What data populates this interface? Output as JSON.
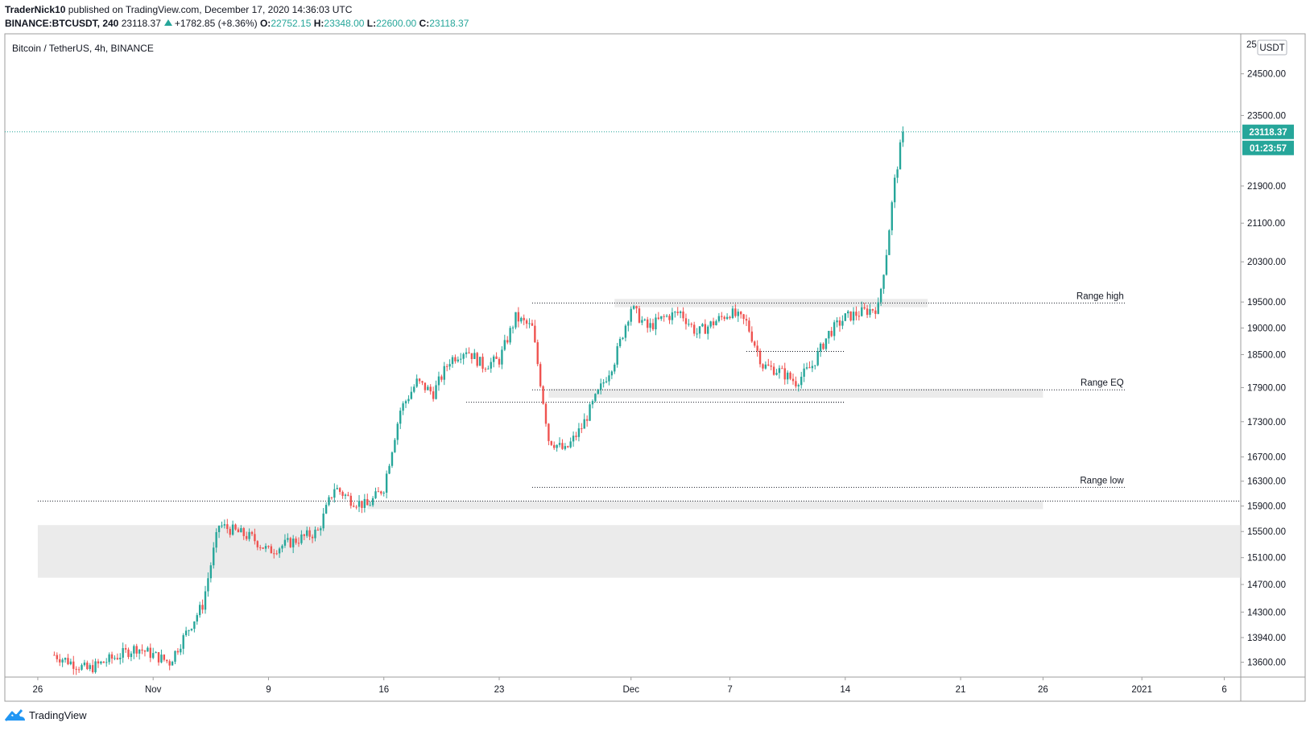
{
  "header": {
    "author": "TraderNick10",
    "published_text": " published on TradingView.com, December 17, 2020 14:36:03 UTC",
    "symbol": "BINANCE:BTCUSDT, 240",
    "last": "23118.37",
    "change": "+1782.85 (+8.36%)",
    "o_label": "O:",
    "o": "22752.15",
    "h_label": "H:",
    "h": "23348.00",
    "l_label": "L:",
    "l": "22600.00",
    "c_label": "C:",
    "c": "23118.37"
  },
  "footer": {
    "brand": "TradingView"
  },
  "colors": {
    "up": "#26a69a",
    "down": "#ef5350",
    "zone": "#e0e0e0"
  },
  "chart_data": {
    "type": "candlestick",
    "title": "Bitcoin / TetherUS, 4h, BINANCE",
    "currency": "USDT",
    "y_scale": "log",
    "y_range": [
      13400,
      25500
    ],
    "x_range": [
      "2020-10-24",
      "2021-01-07"
    ],
    "y_ticks": [
      13600,
      13940,
      14300,
      14700,
      15100,
      15500,
      15900,
      16300,
      16700,
      17300,
      17900,
      18500,
      19000,
      19500,
      20300,
      21100,
      21900,
      23500,
      24500
    ],
    "y_ticks_labels": [
      "13600.00",
      "13940.00",
      "14300.00",
      "14700.00",
      "15100.00",
      "15500.00",
      "15900.00",
      "16300.00",
      "16700.00",
      "17300.00",
      "17900.00",
      "18500.00",
      "19000.00",
      "19500.00",
      "20300.00",
      "21100.00",
      "21900.00",
      "23500.00",
      "24500.00"
    ],
    "y_top_partial_label": "25",
    "x_ticks": [
      {
        "date": "2020-10-26",
        "label": "26"
      },
      {
        "date": "2020-11-02",
        "label": "Nov"
      },
      {
        "date": "2020-11-09",
        "label": "9"
      },
      {
        "date": "2020-11-16",
        "label": "16"
      },
      {
        "date": "2020-11-23",
        "label": "23"
      },
      {
        "date": "2020-12-01",
        "label": "Dec"
      },
      {
        "date": "2020-12-07",
        "label": "7"
      },
      {
        "date": "2020-12-14",
        "label": "14"
      },
      {
        "date": "2020-12-21",
        "label": "21"
      },
      {
        "date": "2020-12-26",
        "label": "26"
      },
      {
        "date": "2021-01-01",
        "label": "2021"
      },
      {
        "date": "2021-01-06",
        "label": "6"
      }
    ],
    "last_price": 23118.37,
    "last_price_label": "23118.37",
    "countdown": "01:23:57",
    "key_points": [
      {
        "date": "2020-10-27",
        "price": 13700
      },
      {
        "date": "2020-10-29",
        "price": 13500
      },
      {
        "date": "2020-11-01",
        "price": 13800
      },
      {
        "date": "2020-11-03",
        "price": 13600
      },
      {
        "date": "2020-11-05",
        "price": 14400
      },
      {
        "date": "2020-11-06",
        "price": 15600
      },
      {
        "date": "2020-11-08",
        "price": 15400
      },
      {
        "date": "2020-11-09",
        "price": 15200
      },
      {
        "date": "2020-11-10",
        "price": 15300
      },
      {
        "date": "2020-11-12",
        "price": 15500
      },
      {
        "date": "2020-11-13",
        "price": 16200
      },
      {
        "date": "2020-11-14",
        "price": 16000
      },
      {
        "date": "2020-11-15",
        "price": 15900
      },
      {
        "date": "2020-11-16",
        "price": 16200
      },
      {
        "date": "2020-11-17",
        "price": 17500
      },
      {
        "date": "2020-11-18",
        "price": 18000
      },
      {
        "date": "2020-11-19",
        "price": 17800
      },
      {
        "date": "2020-11-20",
        "price": 18400
      },
      {
        "date": "2020-11-21",
        "price": 18600
      },
      {
        "date": "2020-11-22",
        "price": 18300
      },
      {
        "date": "2020-11-23",
        "price": 18400
      },
      {
        "date": "2020-11-24",
        "price": 19200
      },
      {
        "date": "2020-11-25",
        "price": 19000
      },
      {
        "date": "2020-11-26",
        "price": 17000
      },
      {
        "date": "2020-11-27",
        "price": 16800
      },
      {
        "date": "2020-11-28",
        "price": 17200
      },
      {
        "date": "2020-11-29",
        "price": 17800
      },
      {
        "date": "2020-11-30",
        "price": 18400
      },
      {
        "date": "2020-12-01",
        "price": 19400
      },
      {
        "date": "2020-12-02",
        "price": 19000
      },
      {
        "date": "2020-12-03",
        "price": 19200
      },
      {
        "date": "2020-12-04",
        "price": 19300
      },
      {
        "date": "2020-12-05",
        "price": 18900
      },
      {
        "date": "2020-12-06",
        "price": 19100
      },
      {
        "date": "2020-12-07",
        "price": 19300
      },
      {
        "date": "2020-12-08",
        "price": 19100
      },
      {
        "date": "2020-12-09",
        "price": 18300
      },
      {
        "date": "2020-12-10",
        "price": 18200
      },
      {
        "date": "2020-12-11",
        "price": 18000
      },
      {
        "date": "2020-12-12",
        "price": 18300
      },
      {
        "date": "2020-12-13",
        "price": 18900
      },
      {
        "date": "2020-12-14",
        "price": 19200
      },
      {
        "date": "2020-12-15",
        "price": 19300
      },
      {
        "date": "2020-12-16",
        "price": 19400
      },
      {
        "date": "2020-12-16T12:00",
        "price": 20500
      },
      {
        "date": "2020-12-17",
        "price": 22000
      },
      {
        "date": "2020-12-17T12:00",
        "price": 23118.37
      }
    ],
    "horizontal_lines": [
      {
        "label": "Range high",
        "price": 19480,
        "from": "2020-11-25",
        "to": "2020-12-31"
      },
      {
        "label": "Range EQ",
        "price": 17860,
        "from": "2020-11-25",
        "to": "2020-12-31"
      },
      {
        "label": "Range low",
        "price": 16200,
        "from": "2020-11-25",
        "to": "2020-12-31"
      },
      {
        "label": "",
        "price": 17640,
        "from": "2020-11-21",
        "to": "2020-12-14"
      },
      {
        "label": "",
        "price": 18560,
        "from": "2020-12-08",
        "to": "2020-12-14"
      },
      {
        "label": "",
        "price": 17640,
        "from": "2020-12-08",
        "to": "2020-12-14"
      },
      {
        "label": "",
        "price": 15980,
        "from": "2020-10-26",
        "to": "2021-01-07"
      }
    ],
    "zones": [
      {
        "from": "2020-11-30",
        "to": "2020-12-19",
        "low": 19400,
        "high": 19560
      },
      {
        "from": "2020-11-26",
        "to": "2020-12-26",
        "low": 17720,
        "high": 17880
      },
      {
        "from": "2020-11-15",
        "to": "2020-12-26",
        "low": 15850,
        "high": 15980
      },
      {
        "from": "2020-10-26",
        "to": "2021-01-07",
        "low": 14800,
        "high": 15600
      }
    ]
  }
}
